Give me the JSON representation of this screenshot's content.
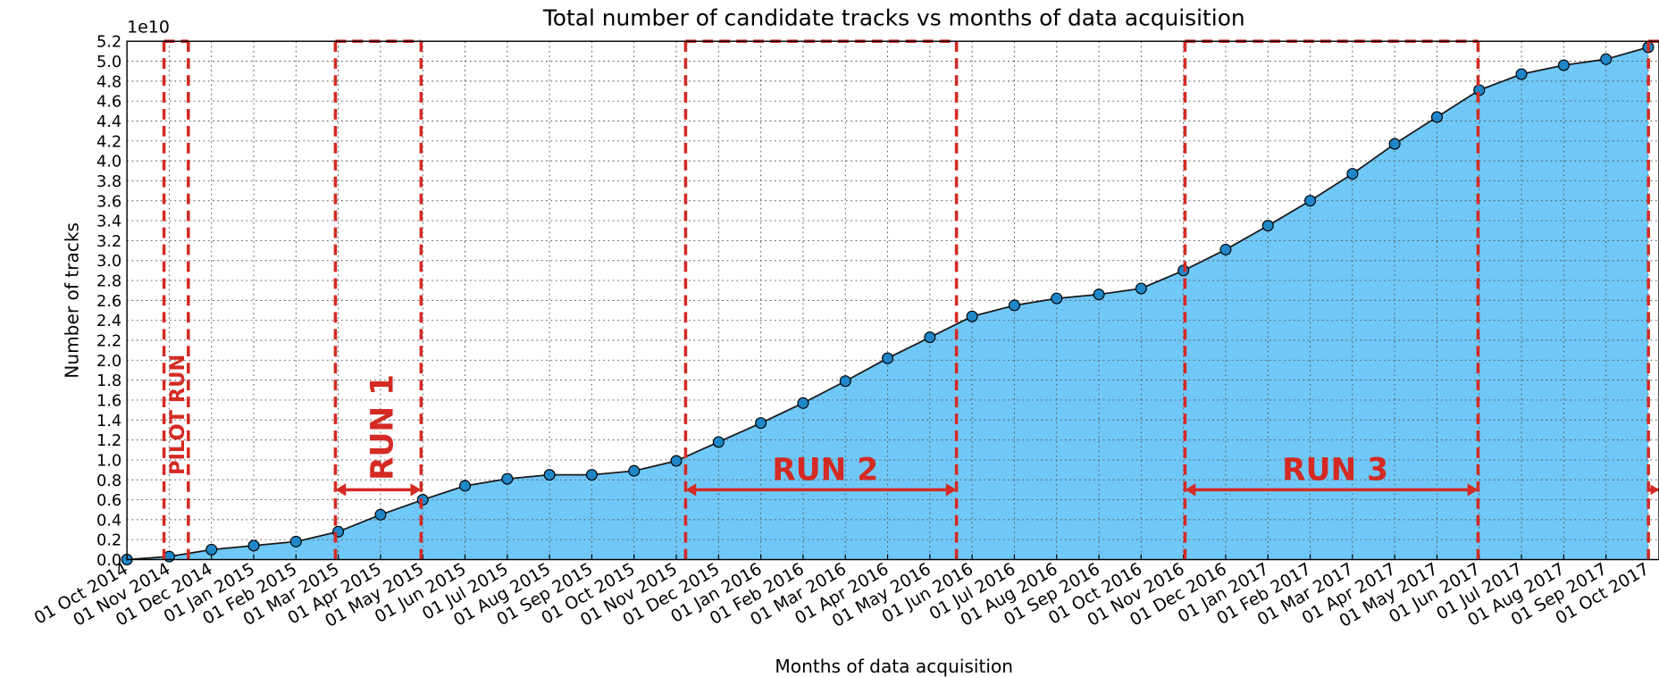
{
  "chart_data": {
    "type": "area",
    "title": "Total number of candidate tracks vs months of data acquisition",
    "x_label": "Months of data acquisition",
    "y_label": "Number of tracks",
    "y_offset_label": "1e10",
    "categories": [
      "01 Oct 2014",
      "01 Nov 2014",
      "01 Dec 2014",
      "01 Jan 2015",
      "01 Feb 2015",
      "01 Mar 2015",
      "01 Apr 2015",
      "01 May 2015",
      "01 Jun 2015",
      "01 Jul 2015",
      "01 Aug 2015",
      "01 Sep 2015",
      "01 Oct 2015",
      "01 Nov 2015",
      "01 Dec 2015",
      "01 Jan 2016",
      "01 Feb 2016",
      "01 Mar 2016",
      "01 Apr 2016",
      "01 May 2016",
      "01 Jun 2016",
      "01 Jul 2016",
      "01 Aug 2016",
      "01 Sep 2016",
      "01 Oct 2016",
      "01 Nov 2016",
      "01 Dec 2016",
      "01 Jan 2017",
      "01 Feb 2017",
      "01 Mar 2017",
      "01 Apr 2017",
      "01 May 2017",
      "01 Jun 2017",
      "01 Jul 2017",
      "01 Aug 2017",
      "01 Sep 2017",
      "01 Oct 2017"
    ],
    "values": [
      0.0,
      0.03,
      0.1,
      0.14,
      0.18,
      0.28,
      0.45,
      0.6,
      0.74,
      0.81,
      0.85,
      0.85,
      0.89,
      0.99,
      1.18,
      1.37,
      1.57,
      1.79,
      2.02,
      2.23,
      2.44,
      2.55,
      2.62,
      2.66,
      2.72,
      2.9,
      3.11,
      3.35,
      3.6,
      3.87,
      4.17,
      4.44,
      4.71,
      4.87,
      4.96,
      5.02,
      5.14
    ],
    "color": "#70c8f8",
    "line_color": "#1a1a1a",
    "marker_color": "#1f86c8",
    "ylim": [
      0,
      5.2
    ],
    "yticks": [
      {
        "value": 0,
        "label": "0.0"
      },
      0.2,
      0.4,
      0.6,
      0.8,
      {
        "value": 1,
        "label": "1.0"
      },
      1.2,
      1.4,
      1.6,
      1.8,
      {
        "value": 2,
        "label": "2.0"
      },
      2.2,
      2.4,
      2.6,
      2.8,
      {
        "value": 3,
        "label": "3.0"
      },
      3.2,
      3.4,
      3.6,
      3.8,
      {
        "value": 4,
        "label": "4.0"
      },
      4.2,
      4.4,
      4.6,
      4.8,
      {
        "value": 5,
        "label": "5.0"
      },
      5.2
    ],
    "grid": true,
    "annotations": [
      "PILOT RUN",
      "RUN 1",
      "RUN 2",
      "RUN 3"
    ],
    "annotation_color": "#d42a24"
  }
}
